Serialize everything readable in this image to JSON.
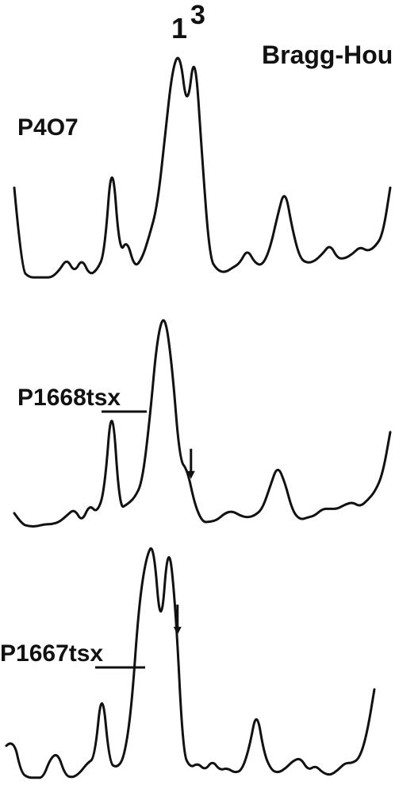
{
  "figure": {
    "technique": "Bragg-Hou",
    "peak_label_1": "1",
    "peak_label_3": "3"
  },
  "chart_data": {
    "type": "line",
    "title": "Bragg-Hou",
    "xlabel": "",
    "ylabel": "",
    "series": [
      {
        "name": "P4O7",
        "label_main": "P4O7",
        "label_suffix": "",
        "x": [
          0,
          2,
          4,
          6,
          8,
          10,
          12,
          14,
          16,
          18,
          20,
          22,
          24,
          26,
          28,
          30,
          32,
          34,
          36,
          38,
          40,
          42,
          44,
          46,
          48,
          50,
          52,
          54,
          56,
          58,
          60,
          62,
          64,
          66,
          68,
          70,
          72,
          74,
          76,
          78,
          80,
          82,
          84,
          86,
          88,
          90,
          92,
          94,
          96,
          98,
          100
        ],
        "y": [
          0.4,
          0.05,
          0.02,
          0.02,
          0.02,
          0.02,
          0.05,
          0.1,
          0.04,
          0.1,
          0.03,
          0.05,
          0.12,
          0.55,
          0.12,
          0.18,
          0.06,
          0.1,
          0.2,
          0.32,
          0.6,
          0.9,
          0.98,
          0.72,
          1.0,
          0.52,
          0.1,
          0.05,
          0.04,
          0.06,
          0.08,
          0.14,
          0.08,
          0.07,
          0.14,
          0.28,
          0.4,
          0.22,
          0.1,
          0.08,
          0.09,
          0.12,
          0.16,
          0.1,
          0.1,
          0.12,
          0.15,
          0.13,
          0.15,
          0.2,
          0.4
        ],
        "arrow_at_x": null
      },
      {
        "name": "P1668tsx",
        "label_main": "P1668",
        "label_suffix": "tsx",
        "x": [
          0,
          2,
          4,
          6,
          8,
          10,
          12,
          14,
          16,
          18,
          20,
          22,
          24,
          26,
          28,
          30,
          32,
          34,
          36,
          38,
          40,
          42,
          44,
          46,
          48,
          50,
          52,
          54,
          56,
          58,
          60,
          62,
          64,
          66,
          68,
          70,
          72,
          74,
          76,
          78,
          80,
          82,
          84,
          86,
          88,
          90,
          92,
          94,
          96,
          98,
          100
        ],
        "y": [
          0.08,
          0.03,
          0.02,
          0.02,
          0.03,
          0.03,
          0.04,
          0.07,
          0.1,
          0.04,
          0.12,
          0.08,
          0.18,
          0.62,
          0.1,
          0.12,
          0.15,
          0.22,
          0.5,
          0.88,
          1.0,
          0.75,
          0.32,
          0.28,
          0.12,
          0.04,
          0.04,
          0.05,
          0.08,
          0.09,
          0.07,
          0.06,
          0.07,
          0.1,
          0.2,
          0.3,
          0.22,
          0.09,
          0.05,
          0.06,
          0.07,
          0.1,
          0.1,
          0.1,
          0.12,
          0.13,
          0.11,
          0.14,
          0.18,
          0.26,
          0.45
        ],
        "arrow_at_x": 47
      },
      {
        "name": "P1667tsx",
        "label_main": "P1667",
        "label_suffix": "tsx",
        "x": [
          0,
          2,
          4,
          6,
          8,
          10,
          12,
          14,
          16,
          18,
          20,
          22,
          24,
          26,
          28,
          30,
          32,
          34,
          36,
          38,
          40,
          42,
          44,
          46,
          48,
          50,
          52,
          54,
          56,
          58,
          60,
          62,
          64,
          66,
          68,
          70,
          72,
          74,
          76,
          78,
          80,
          82,
          84,
          86,
          88,
          90,
          92,
          94,
          96,
          98,
          100
        ],
        "y": [
          0.15,
          0.18,
          0.04,
          0.02,
          0.02,
          0.02,
          0.1,
          0.12,
          0.03,
          0.02,
          0.04,
          0.08,
          0.1,
          0.4,
          0.08,
          0.06,
          0.1,
          0.3,
          0.72,
          0.92,
          0.98,
          0.6,
          1.0,
          0.72,
          0.12,
          0.06,
          0.08,
          0.05,
          0.09,
          0.05,
          0.06,
          0.04,
          0.05,
          0.14,
          0.3,
          0.12,
          0.05,
          0.04,
          0.06,
          0.09,
          0.1,
          0.05,
          0.07,
          0.04,
          0.03,
          0.05,
          0.08,
          0.08,
          0.1,
          0.2,
          0.38
        ],
        "arrow_at_x": 46.5
      }
    ]
  }
}
